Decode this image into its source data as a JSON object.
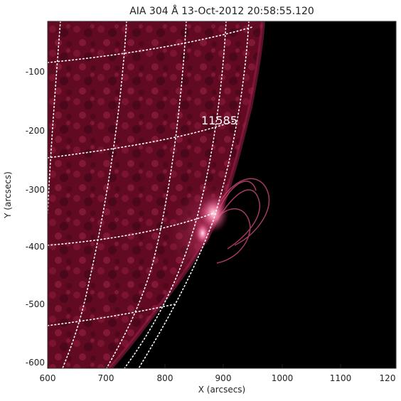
{
  "title": "AIA 304 Å 13-Oct-2012 20:58:55.120",
  "xlabel": "X (arcsecs)",
  "ylabel": "Y (arcsecs)",
  "x_ticks": [
    "600",
    "700",
    "800",
    "900",
    "1000",
    "1100",
    "120"
  ],
  "y_ticks": [
    "-100",
    "-200",
    "-300",
    "-400",
    "-500",
    "-600"
  ],
  "annotation": "11585",
  "colors": {
    "chromosphere": "#6a0c24",
    "flare": "#ffd6e6",
    "space": "#000000",
    "grid": "#ffffff"
  }
}
